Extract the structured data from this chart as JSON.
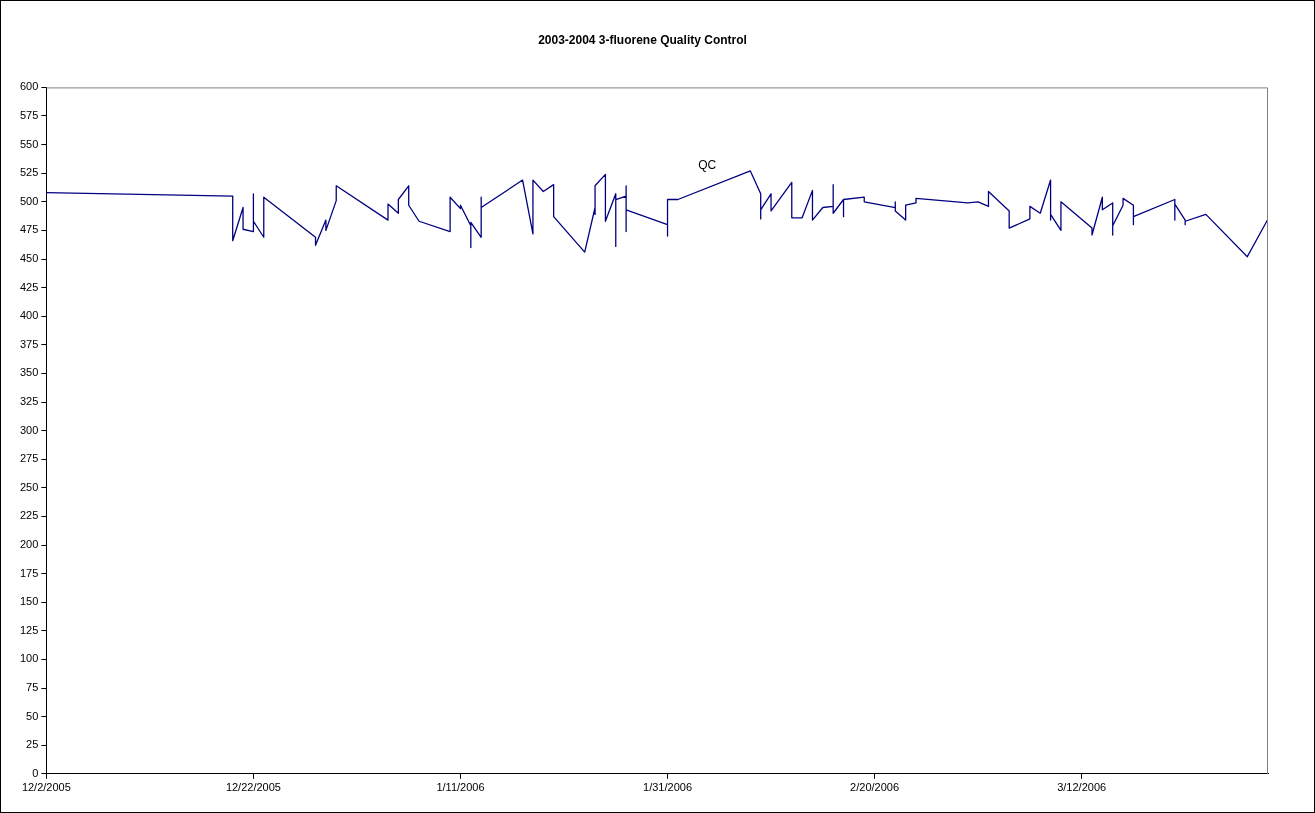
{
  "chart_data": {
    "type": "line",
    "title": "2003-2004 3-fluorene Quality Control",
    "xlim": [
      "2005-12-02",
      "2006-03-30"
    ],
    "xticks": [
      {
        "value": "2005-12-02",
        "label": "12/2/2005"
      },
      {
        "value": "2005-12-22",
        "label": "12/22/2005"
      },
      {
        "value": "2006-01-11",
        "label": "1/11/2006"
      },
      {
        "value": "2006-01-31",
        "label": "1/31/2006"
      },
      {
        "value": "2006-02-20",
        "label": "2/20/2006"
      },
      {
        "value": "2006-03-12",
        "label": "3/12/2006"
      }
    ],
    "ylim": [
      0,
      600
    ],
    "yticks": [
      0,
      25,
      50,
      75,
      100,
      125,
      150,
      175,
      200,
      225,
      250,
      275,
      300,
      325,
      350,
      375,
      400,
      425,
      450,
      475,
      500,
      525,
      550,
      575,
      600
    ],
    "legend": false,
    "marker": "none",
    "line_style": "solid",
    "series": [
      {
        "name": "QC",
        "color": "#000080",
        "x": [
          "2005-12-02",
          "2005-12-20",
          "2005-12-20",
          "2005-12-21",
          "2005-12-21",
          "2005-12-22",
          "2005-12-22",
          "2005-12-22",
          "2005-12-23",
          "2005-12-23",
          "2005-12-28",
          "2005-12-28",
          "2005-12-29",
          "2005-12-29",
          "2005-12-30",
          "2005-12-30",
          "2006-01-04",
          "2006-01-04",
          "2006-01-05",
          "2006-01-05",
          "2006-01-06",
          "2006-01-06",
          "2006-01-07",
          "2006-01-10",
          "2006-01-10",
          "2006-01-11",
          "2006-01-11",
          "2006-01-12",
          "2006-01-12",
          "2006-01-12",
          "2006-01-13",
          "2006-01-13",
          "2006-01-13",
          "2006-01-17",
          "2006-01-18",
          "2006-01-18",
          "2006-01-19",
          "2006-01-20",
          "2006-01-20",
          "2006-01-23",
          "2006-01-24",
          "2006-01-24",
          "2006-01-24",
          "2006-01-25",
          "2006-01-25",
          "2006-01-26",
          "2006-01-26",
          "2006-01-26",
          "2006-01-27",
          "2006-01-27",
          "2006-01-27",
          "2006-01-27",
          "2006-01-31",
          "2006-01-31",
          "2006-01-31",
          "2006-02-01",
          "2006-02-08",
          "2006-02-09",
          "2006-02-09",
          "2006-02-09",
          "2006-02-10",
          "2006-02-10",
          "2006-02-12",
          "2006-02-12",
          "2006-02-13",
          "2006-02-14",
          "2006-02-14",
          "2006-02-15",
          "2006-02-16",
          "2006-02-16",
          "2006-02-16",
          "2006-02-17",
          "2006-02-17",
          "2006-02-17",
          "2006-02-19",
          "2006-02-19",
          "2006-02-22",
          "2006-02-22",
          "2006-02-22",
          "2006-02-23",
          "2006-02-23",
          "2006-02-24",
          "2006-02-24",
          "2006-03-01",
          "2006-03-02",
          "2006-03-03",
          "2006-03-03",
          "2006-03-05",
          "2006-03-05",
          "2006-03-07",
          "2006-03-07",
          "2006-03-08",
          "2006-03-09",
          "2006-03-09",
          "2006-03-09",
          "2006-03-10",
          "2006-03-10",
          "2006-03-13",
          "2006-03-13",
          "2006-03-14",
          "2006-03-14",
          "2006-03-15",
          "2006-03-15",
          "2006-03-15",
          "2006-03-16",
          "2006-03-16",
          "2006-03-17",
          "2006-03-17",
          "2006-03-17",
          "2006-03-21",
          "2006-03-21",
          "2006-03-21",
          "2006-03-22",
          "2006-03-22",
          "2006-03-22",
          "2006-03-24",
          "2006-03-28",
          "2006-03-30"
        ],
        "values": [
          508,
          505,
          466,
          495,
          476,
          474,
          507,
          483,
          469,
          504,
          469,
          462,
          484,
          475,
          501,
          514,
          484,
          498,
          490,
          502,
          514,
          497,
          483,
          474,
          504,
          494,
          497,
          479,
          460,
          482,
          469,
          504,
          495,
          519,
          472,
          519,
          509,
          515,
          487,
          456,
          495,
          489,
          514,
          524,
          483,
          507,
          461,
          502,
          505,
          514,
          474,
          493,
          480,
          470,
          502,
          502,
          527,
          507,
          485,
          493,
          507,
          492,
          517,
          486,
          486,
          510,
          484,
          495,
          496,
          515,
          490,
          502,
          487,
          502,
          504,
          500,
          495,
          500,
          492,
          484,
          497,
          499,
          503,
          499,
          500,
          496,
          509,
          492,
          477,
          485,
          496,
          490,
          519,
          484,
          489,
          475,
          500,
          477,
          471,
          504,
          493,
          499,
          471,
          479,
          497,
          503,
          497,
          480,
          487,
          502,
          484,
          498,
          484,
          480,
          483,
          489,
          452,
          485
        ]
      }
    ]
  }
}
